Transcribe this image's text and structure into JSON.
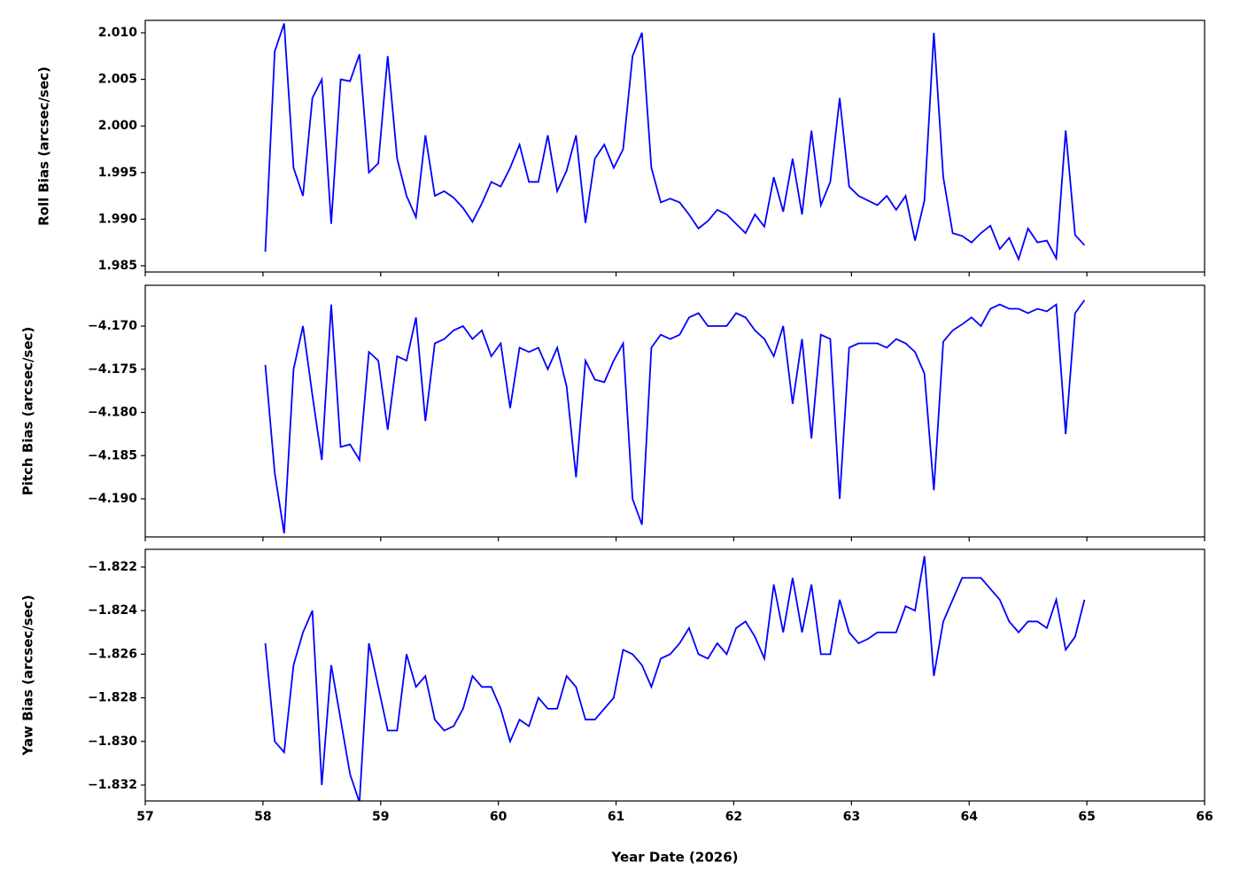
{
  "chart_data": [
    {
      "type": "line",
      "ylabel": "Roll Bias (arcsec/sec)",
      "x": [
        58.02,
        58.1,
        58.18,
        58.26,
        58.34,
        58.42,
        58.5,
        58.58,
        58.66,
        58.74,
        58.82,
        58.9,
        58.98,
        59.06,
        59.14,
        59.22,
        59.3,
        59.38,
        59.46,
        59.54,
        59.62,
        59.7,
        59.78,
        59.86,
        59.94,
        60.02,
        60.1,
        60.18,
        60.26,
        60.34,
        60.42,
        60.5,
        60.58,
        60.66,
        60.74,
        60.82,
        60.9,
        60.98,
        61.06,
        61.14,
        61.22,
        61.3,
        61.38,
        61.46,
        61.54,
        61.62,
        61.7,
        61.78,
        61.86,
        61.94,
        62.02,
        62.1,
        62.18,
        62.26,
        62.34,
        62.42,
        62.5,
        62.58,
        62.66,
        62.74,
        62.82,
        62.9,
        62.98,
        63.06,
        63.14,
        63.22,
        63.3,
        63.38,
        63.46,
        63.54,
        63.62,
        63.7,
        63.78,
        63.86,
        63.94,
        64.02,
        64.1,
        64.18,
        64.26,
        64.34,
        64.42,
        64.5,
        64.58,
        64.66,
        64.74,
        64.82,
        64.9,
        64.98
      ],
      "series": [
        {
          "color": "#0000ff",
          "values": [
            1.9865,
            2.008,
            2.011,
            1.9955,
            1.9925,
            2.003,
            2.005,
            1.9895,
            2.005,
            2.0048,
            2.0077,
            1.995,
            1.996,
            2.0075,
            1.9965,
            1.9925,
            1.9902,
            1.999,
            1.9925,
            1.993,
            1.9923,
            1.9912,
            1.9897,
            1.9917,
            1.994,
            1.9935,
            1.9955,
            1.998,
            1.994,
            1.994,
            1.999,
            1.993,
            1.9952,
            1.999,
            1.9896,
            1.9965,
            1.998,
            1.9955,
            1.9975,
            2.0075,
            2.01,
            1.9955,
            1.9918,
            1.9922,
            1.9918,
            1.9905,
            1.989,
            1.9898,
            1.991,
            1.9905,
            1.9895,
            1.9885,
            1.9905,
            1.9892,
            1.9945,
            1.9908,
            1.9965,
            1.9905,
            1.9995,
            1.9915,
            1.994,
            2.003,
            1.9935,
            1.9925,
            1.992,
            1.9915,
            1.9925,
            1.991,
            1.9925,
            1.9877,
            1.992,
            2.01,
            1.9945,
            1.9885,
            1.9882,
            1.9875,
            1.9885,
            1.9893,
            1.9868,
            1.988,
            1.9857,
            1.989,
            1.9875,
            1.9877,
            1.9858,
            1.9995,
            1.9883,
            1.9872
          ]
        }
      ],
      "xlim": [
        57,
        66
      ],
      "xticks": [
        57,
        58,
        59,
        60,
        61,
        62,
        63,
        64,
        65,
        66
      ],
      "ylim": [
        1.98433,
        2.01133
      ],
      "yticks": [
        1.985,
        {
          "value": 1.99,
          "label": "1.990"
        },
        1.995,
        {
          "value": 2.0,
          "label": "2.000"
        },
        2.005,
        {
          "value": 2.01,
          "label": "2.010"
        }
      ]
    },
    {
      "type": "line",
      "ylabel": "Pitch Bias (arcsec/sec)",
      "x": [
        58.02,
        58.1,
        58.18,
        58.26,
        58.34,
        58.42,
        58.5,
        58.58,
        58.66,
        58.74,
        58.82,
        58.9,
        58.98,
        59.06,
        59.14,
        59.22,
        59.3,
        59.38,
        59.46,
        59.54,
        59.62,
        59.7,
        59.78,
        59.86,
        59.94,
        60.02,
        60.1,
        60.18,
        60.26,
        60.34,
        60.42,
        60.5,
        60.58,
        60.66,
        60.74,
        60.82,
        60.9,
        60.98,
        61.06,
        61.14,
        61.22,
        61.3,
        61.38,
        61.46,
        61.54,
        61.62,
        61.7,
        61.78,
        61.86,
        61.94,
        62.02,
        62.1,
        62.18,
        62.26,
        62.34,
        62.42,
        62.5,
        62.58,
        62.66,
        62.74,
        62.82,
        62.9,
        62.98,
        63.06,
        63.14,
        63.22,
        63.3,
        63.38,
        63.46,
        63.54,
        63.62,
        63.7,
        63.78,
        63.86,
        63.94,
        64.02,
        64.1,
        64.18,
        64.26,
        64.34,
        64.42,
        64.5,
        64.58,
        64.66,
        64.74,
        64.82,
        64.9,
        64.98
      ],
      "series": [
        {
          "color": "#0000ff",
          "values": [
            -4.1745,
            -4.187,
            -4.194,
            -4.175,
            -4.17,
            -4.178,
            -4.1855,
            -4.1675,
            -4.184,
            -4.1837,
            -4.1855,
            -4.173,
            -4.174,
            -4.182,
            -4.1735,
            -4.174,
            -4.169,
            -4.181,
            -4.172,
            -4.1715,
            -4.1705,
            -4.17,
            -4.1715,
            -4.1705,
            -4.1735,
            -4.172,
            -4.1795,
            -4.1725,
            -4.173,
            -4.1725,
            -4.175,
            -4.1725,
            -4.177,
            -4.1875,
            -4.174,
            -4.1762,
            -4.1765,
            -4.174,
            -4.172,
            -4.19,
            -4.193,
            -4.1725,
            -4.171,
            -4.1715,
            -4.171,
            -4.169,
            -4.1685,
            -4.17,
            -4.17,
            -4.17,
            -4.1685,
            -4.169,
            -4.1705,
            -4.1715,
            -4.1735,
            -4.17,
            -4.179,
            -4.1715,
            -4.183,
            -4.171,
            -4.1715,
            -4.19,
            -4.1725,
            -4.172,
            -4.172,
            -4.172,
            -4.1725,
            -4.1715,
            -4.172,
            -4.173,
            -4.1755,
            -4.189,
            -4.1718,
            -4.1705,
            -4.1698,
            -4.169,
            -4.17,
            -4.168,
            -4.1675,
            -4.168,
            -4.168,
            -4.1685,
            -4.168,
            -4.1683,
            -4.1675,
            -4.1825,
            -4.1685,
            -4.167
          ]
        }
      ],
      "xlim": [
        57,
        66
      ],
      "xticks": [
        57,
        58,
        59,
        60,
        61,
        62,
        63,
        64,
        65,
        66
      ],
      "ylim": [
        -4.19441,
        -4.16528
      ],
      "yticks": [
        {
          "value": -4.19,
          "label": "−4.190"
        },
        {
          "value": -4.185,
          "label": "−4.185"
        },
        {
          "value": -4.18,
          "label": "−4.180"
        },
        {
          "value": -4.175,
          "label": "−4.175"
        },
        {
          "value": -4.17,
          "label": "−4.170"
        }
      ]
    },
    {
      "type": "line",
      "ylabel": "Yaw Bias (arcsec/sec)",
      "xlabel": "Year Date (2026)",
      "x": [
        58.02,
        58.1,
        58.18,
        58.26,
        58.34,
        58.42,
        58.5,
        58.58,
        58.66,
        58.74,
        58.82,
        58.9,
        58.98,
        59.06,
        59.14,
        59.22,
        59.3,
        59.38,
        59.46,
        59.54,
        59.62,
        59.7,
        59.78,
        59.86,
        59.94,
        60.02,
        60.1,
        60.18,
        60.26,
        60.34,
        60.42,
        60.5,
        60.58,
        60.66,
        60.74,
        60.82,
        60.9,
        60.98,
        61.06,
        61.14,
        61.22,
        61.3,
        61.38,
        61.46,
        61.54,
        61.62,
        61.7,
        61.78,
        61.86,
        61.94,
        62.02,
        62.1,
        62.18,
        62.26,
        62.34,
        62.42,
        62.5,
        62.58,
        62.66,
        62.74,
        62.82,
        62.9,
        62.98,
        63.06,
        63.14,
        63.22,
        63.3,
        63.38,
        63.46,
        63.54,
        63.62,
        63.7,
        63.78,
        63.86,
        63.94,
        64.02,
        64.1,
        64.18,
        64.26,
        64.34,
        64.42,
        64.5,
        64.58,
        64.66,
        64.74,
        64.82,
        64.9,
        64.98
      ],
      "series": [
        {
          "color": "#0000ff",
          "values": [
            -1.8255,
            -1.83,
            -1.8305,
            -1.8265,
            -1.825,
            -1.824,
            -1.832,
            -1.8265,
            -1.829,
            -1.8315,
            -1.8328,
            -1.8255,
            -1.8275,
            -1.8295,
            -1.8295,
            -1.826,
            -1.8275,
            -1.827,
            -1.829,
            -1.8295,
            -1.8293,
            -1.8285,
            -1.827,
            -1.8275,
            -1.8275,
            -1.8285,
            -1.83,
            -1.829,
            -1.8293,
            -1.828,
            -1.8285,
            -1.8285,
            -1.827,
            -1.8275,
            -1.829,
            -1.829,
            -1.8285,
            -1.828,
            -1.8258,
            -1.826,
            -1.8265,
            -1.8275,
            -1.8262,
            -1.826,
            -1.8255,
            -1.8248,
            -1.826,
            -1.8262,
            -1.8255,
            -1.826,
            -1.8248,
            -1.8245,
            -1.8252,
            -1.8262,
            -1.8228,
            -1.825,
            -1.8225,
            -1.825,
            -1.8228,
            -1.826,
            -1.826,
            -1.8235,
            -1.825,
            -1.8255,
            -1.8253,
            -1.825,
            -1.825,
            -1.825,
            -1.8238,
            -1.824,
            -1.8215,
            -1.827,
            -1.8245,
            -1.8235,
            -1.8225,
            -1.8225,
            -1.8225,
            -1.823,
            -1.8235,
            -1.8245,
            -1.825,
            -1.8245,
            -1.8245,
            -1.8248,
            -1.8235,
            -1.8258,
            -1.8252,
            -1.8235
          ]
        }
      ],
      "xlim": [
        57,
        66
      ],
      "xticks": [
        57,
        58,
        59,
        60,
        61,
        62,
        63,
        64,
        65,
        66
      ],
      "ylim": [
        -1.83273,
        -1.82119
      ],
      "yticks": [
        {
          "value": -1.832,
          "label": "−1.832"
        },
        {
          "value": -1.83,
          "label": "−1.830"
        },
        {
          "value": -1.828,
          "label": "−1.828"
        },
        {
          "value": -1.826,
          "label": "−1.826"
        },
        {
          "value": -1.824,
          "label": "−1.824"
        },
        {
          "value": -1.822,
          "label": "−1.822"
        }
      ]
    }
  ]
}
